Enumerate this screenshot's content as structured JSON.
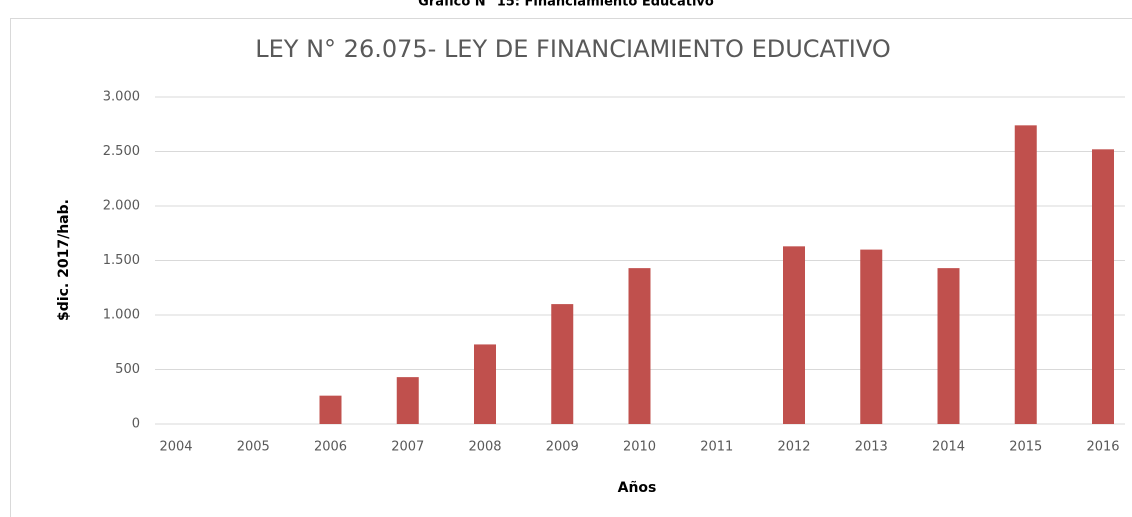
{
  "caption": "Gráfico N° 15: Financiamiento Educativo",
  "chart_data": {
    "type": "bar",
    "title": "LEY N° 26.075- LEY DE FINANCIAMIENTO EDUCATIVO",
    "x_label": "Años",
    "y_label": "$dic. 2017/hab.",
    "categories": [
      "2004",
      "2005",
      "2006",
      "2007",
      "2008",
      "2009",
      "2010",
      "2011",
      "2012",
      "2013",
      "2014",
      "2015",
      "2016"
    ],
    "values": [
      0,
      0,
      260,
      430,
      730,
      1100,
      1430,
      0,
      1630,
      1600,
      1430,
      2740,
      2520
    ],
    "color": "#c0504d",
    "ylim": [
      0,
      3000
    ],
    "yticks": [
      0,
      500,
      {
        "value": 1000,
        "label": "1.000"
      },
      {
        "value": 1500,
        "label": "1.500"
      },
      {
        "value": 2000,
        "label": "2.000"
      },
      {
        "value": 2500,
        "label": "2.500"
      },
      {
        "value": 3000,
        "label": "3.000"
      }
    ],
    "grid": true
  }
}
